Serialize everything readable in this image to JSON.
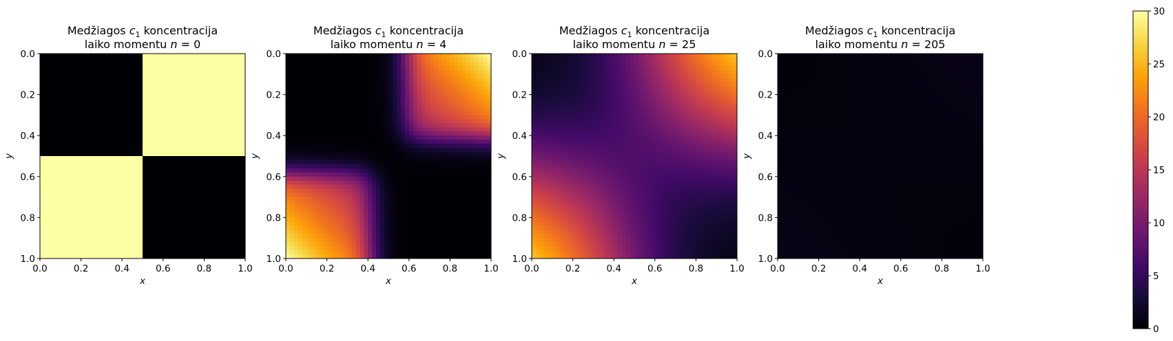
{
  "chart_data": [
    {
      "type": "heatmap",
      "title_line1": {
        "prefix": "Medžiagos ",
        "var": "c",
        "sub": "1",
        "suffix": " koncentracija"
      },
      "title_line2": {
        "prefix": "laiko momentu ",
        "var": "n",
        "suffix": " = 0"
      },
      "xlabel": "x",
      "ylabel": "y",
      "xlim": [
        0,
        1
      ],
      "ylim": [
        1,
        0
      ],
      "xticks": [
        "0.0",
        "0.2",
        "0.4",
        "0.6",
        "0.8",
        "1.0"
      ],
      "yticks": [
        "0.0",
        "0.2",
        "0.4",
        "0.6",
        "0.8",
        "1.0"
      ],
      "colormap": "inferno",
      "field": {
        "kind": "initial",
        "amplitude": 30,
        "quadrants": "top-right and bottom-left high, others zero"
      }
    },
    {
      "type": "heatmap",
      "title_line1": {
        "prefix": "Medžiagos ",
        "var": "c",
        "sub": "1",
        "suffix": " koncentracija"
      },
      "title_line2": {
        "prefix": "laiko momentu ",
        "var": "n",
        "suffix": " = 4"
      },
      "xlabel": "x",
      "ylabel": "y",
      "xlim": [
        0,
        1
      ],
      "ylim": [
        1,
        0
      ],
      "xticks": [
        "0.0",
        "0.2",
        "0.4",
        "0.6",
        "0.8",
        "1.0"
      ],
      "yticks": [
        "0.0",
        "0.2",
        "0.4",
        "0.6",
        "0.8",
        "1.0"
      ],
      "colormap": "inferno",
      "field": {
        "kind": "diffusing",
        "amplitude": 30,
        "decay": 1.0,
        "front": 0.42,
        "sharpness": 28
      }
    },
    {
      "type": "heatmap",
      "title_line1": {
        "prefix": "Medžiagos ",
        "var": "c",
        "sub": "1",
        "suffix": " koncentracija"
      },
      "title_line2": {
        "prefix": "laiko momentu ",
        "var": "n",
        "suffix": " = 25"
      },
      "xlabel": "x",
      "ylabel": "y",
      "xlim": [
        0,
        1
      ],
      "ylim": [
        1,
        0
      ],
      "xticks": [
        "0.0",
        "0.2",
        "0.4",
        "0.6",
        "0.8",
        "1.0"
      ],
      "yticks": [
        "0.0",
        "0.2",
        "0.4",
        "0.6",
        "0.8",
        "1.0"
      ],
      "colormap": "inferno",
      "field": {
        "kind": "diffusing",
        "amplitude": 29,
        "decay": 0.55,
        "front": 0.47,
        "sharpness": 6
      }
    },
    {
      "type": "heatmap",
      "title_line1": {
        "prefix": "Medžiagos ",
        "var": "c",
        "sub": "1",
        "suffix": " koncentracija"
      },
      "title_line2": {
        "prefix": "laiko momentu ",
        "var": "n",
        "suffix": " = 205"
      },
      "xlabel": "x",
      "ylabel": "y",
      "xlim": [
        0,
        1
      ],
      "ylim": [
        1,
        0
      ],
      "xticks": [
        "0.0",
        "0.2",
        "0.4",
        "0.6",
        "0.8",
        "1.0"
      ],
      "yticks": [
        "0.0",
        "0.2",
        "0.4",
        "0.6",
        "0.8",
        "1.0"
      ],
      "colormap": "inferno",
      "field": {
        "kind": "diffusing",
        "amplitude": 1.8,
        "decay": 0.6,
        "front": 0.55,
        "sharpness": 2.2
      }
    }
  ],
  "colorbar": {
    "colormap": "inferno",
    "range": [
      0,
      30
    ],
    "ticks": [
      "0",
      "5",
      "10",
      "15",
      "20",
      "25",
      "30"
    ],
    "tick_values": [
      0,
      5,
      10,
      15,
      20,
      25,
      30
    ]
  }
}
